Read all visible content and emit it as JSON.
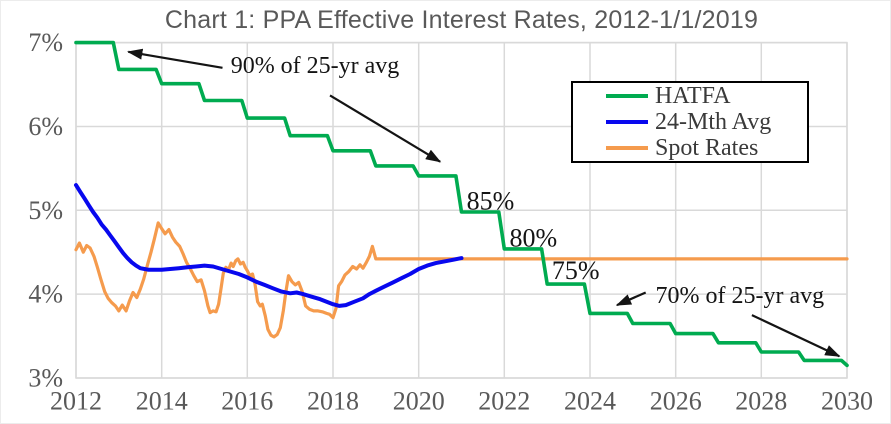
{
  "chart_data": {
    "type": "line",
    "title": "Chart 1: PPA Effective Interest Rates, 2012-1/1/2019",
    "title_color": "#595959",
    "grid_color": "#d9d9d9",
    "tick_color": "#595959",
    "annotation_color": "#141414",
    "x_axis": {
      "min": 2012,
      "max": 2030,
      "tick_labels": [
        "2012",
        "2014",
        "2016",
        "2018",
        "2020",
        "2022",
        "2024",
        "2026",
        "2028",
        "2030"
      ]
    },
    "y_axis": {
      "min": 3,
      "max": 7,
      "ticks": [
        {
          "label": "7%",
          "value": 7
        },
        {
          "label": "6%",
          "value": 6
        },
        {
          "label": "5%",
          "value": 5
        },
        {
          "label": "4%",
          "value": 4
        },
        {
          "label": "3%",
          "value": 3
        }
      ]
    },
    "legend": {
      "position": "top-right",
      "border_color": "#000000"
    },
    "series": [
      {
        "name": "HATFA",
        "color": "#00ab50",
        "style": "step",
        "stroke_width": 3.6,
        "step_years": [
          2012,
          2013,
          2014,
          2015,
          2016,
          2017,
          2018,
          2019,
          2020,
          2021,
          2022,
          2023,
          2024,
          2025,
          2026,
          2027,
          2028,
          2029,
          2030
        ],
        "step_values": [
          7.0,
          6.68,
          6.51,
          6.31,
          6.1,
          5.89,
          5.71,
          5.53,
          5.41,
          4.98,
          4.54,
          4.12,
          3.77,
          3.65,
          3.53,
          3.42,
          3.31,
          3.21,
          3.15
        ]
      },
      {
        "name": "24-Mth Avg",
        "color": "#0808ee",
        "style": "line",
        "stroke_width": 4,
        "points": [
          [
            2012.0,
            5.3
          ],
          [
            2012.1,
            5.22
          ],
          [
            2012.2,
            5.14
          ],
          [
            2012.3,
            5.06
          ],
          [
            2012.4,
            4.98
          ],
          [
            2012.5,
            4.91
          ],
          [
            2012.6,
            4.83
          ],
          [
            2012.7,
            4.77
          ],
          [
            2012.8,
            4.7
          ],
          [
            2012.9,
            4.63
          ],
          [
            2013.0,
            4.56
          ],
          [
            2013.1,
            4.49
          ],
          [
            2013.2,
            4.43
          ],
          [
            2013.3,
            4.38
          ],
          [
            2013.4,
            4.34
          ],
          [
            2013.5,
            4.31
          ],
          [
            2013.6,
            4.3
          ],
          [
            2013.7,
            4.29
          ],
          [
            2013.85,
            4.29
          ],
          [
            2014.0,
            4.29
          ],
          [
            2014.2,
            4.3
          ],
          [
            2014.4,
            4.31
          ],
          [
            2014.6,
            4.32
          ],
          [
            2014.8,
            4.33
          ],
          [
            2015.0,
            4.34
          ],
          [
            2015.2,
            4.33
          ],
          [
            2015.4,
            4.3
          ],
          [
            2015.6,
            4.27
          ],
          [
            2015.8,
            4.24
          ],
          [
            2016.0,
            4.2
          ],
          [
            2016.2,
            4.15
          ],
          [
            2016.4,
            4.11
          ],
          [
            2016.6,
            4.07
          ],
          [
            2016.8,
            4.03
          ],
          [
            2017.0,
            4.01
          ],
          [
            2017.15,
            4.02
          ],
          [
            2017.3,
            4.0
          ],
          [
            2017.5,
            3.97
          ],
          [
            2017.7,
            3.94
          ],
          [
            2017.85,
            3.91
          ],
          [
            2018.0,
            3.88
          ],
          [
            2018.15,
            3.86
          ],
          [
            2018.3,
            3.87
          ],
          [
            2018.5,
            3.91
          ],
          [
            2018.7,
            3.95
          ],
          [
            2018.85,
            4.0
          ],
          [
            2019.0,
            4.04
          ],
          [
            2019.2,
            4.09
          ],
          [
            2019.4,
            4.14
          ],
          [
            2019.6,
            4.19
          ],
          [
            2019.8,
            4.24
          ],
          [
            2020.0,
            4.3
          ],
          [
            2020.2,
            4.34
          ],
          [
            2020.4,
            4.37
          ],
          [
            2020.6,
            4.39
          ],
          [
            2020.8,
            4.41
          ],
          [
            2021.0,
            4.43
          ]
        ]
      },
      {
        "name": "Spot Rates",
        "color": "#f59b4d",
        "style": "line",
        "stroke_width": 3.2,
        "points": [
          [
            2012.0,
            4.53
          ],
          [
            2012.08,
            4.61
          ],
          [
            2012.17,
            4.5
          ],
          [
            2012.25,
            4.58
          ],
          [
            2012.33,
            4.55
          ],
          [
            2012.42,
            4.45
          ],
          [
            2012.5,
            4.32
          ],
          [
            2012.58,
            4.18
          ],
          [
            2012.67,
            4.03
          ],
          [
            2012.75,
            3.95
          ],
          [
            2012.83,
            3.9
          ],
          [
            2012.92,
            3.86
          ],
          [
            2013.0,
            3.8
          ],
          [
            2013.08,
            3.87
          ],
          [
            2013.17,
            3.8
          ],
          [
            2013.25,
            3.92
          ],
          [
            2013.33,
            4.02
          ],
          [
            2013.42,
            3.96
          ],
          [
            2013.5,
            4.06
          ],
          [
            2013.58,
            4.18
          ],
          [
            2013.67,
            4.35
          ],
          [
            2013.75,
            4.5
          ],
          [
            2013.83,
            4.66
          ],
          [
            2013.92,
            4.85
          ],
          [
            2014.0,
            4.78
          ],
          [
            2014.08,
            4.72
          ],
          [
            2014.17,
            4.77
          ],
          [
            2014.25,
            4.68
          ],
          [
            2014.33,
            4.62
          ],
          [
            2014.42,
            4.57
          ],
          [
            2014.5,
            4.48
          ],
          [
            2014.58,
            4.38
          ],
          [
            2014.67,
            4.3
          ],
          [
            2014.75,
            4.22
          ],
          [
            2014.83,
            4.15
          ],
          [
            2014.92,
            4.17
          ],
          [
            2015.0,
            4.04
          ],
          [
            2015.08,
            3.86
          ],
          [
            2015.13,
            3.78
          ],
          [
            2015.2,
            3.8
          ],
          [
            2015.27,
            3.79
          ],
          [
            2015.33,
            3.88
          ],
          [
            2015.38,
            4.05
          ],
          [
            2015.44,
            4.25
          ],
          [
            2015.5,
            4.32
          ],
          [
            2015.56,
            4.29
          ],
          [
            2015.62,
            4.37
          ],
          [
            2015.67,
            4.33
          ],
          [
            2015.73,
            4.4
          ],
          [
            2015.78,
            4.42
          ],
          [
            2015.84,
            4.36
          ],
          [
            2015.9,
            4.38
          ],
          [
            2015.95,
            4.32
          ],
          [
            2016.0,
            4.28
          ],
          [
            2016.06,
            4.22
          ],
          [
            2016.12,
            4.24
          ],
          [
            2016.18,
            4.12
          ],
          [
            2016.24,
            3.91
          ],
          [
            2016.3,
            3.86
          ],
          [
            2016.35,
            3.88
          ],
          [
            2016.42,
            3.74
          ],
          [
            2016.48,
            3.58
          ],
          [
            2016.55,
            3.51
          ],
          [
            2016.62,
            3.49
          ],
          [
            2016.7,
            3.52
          ],
          [
            2016.77,
            3.6
          ],
          [
            2016.84,
            3.8
          ],
          [
            2016.9,
            4.03
          ],
          [
            2016.96,
            4.22
          ],
          [
            2017.04,
            4.15
          ],
          [
            2017.12,
            4.11
          ],
          [
            2017.2,
            4.14
          ],
          [
            2017.28,
            4.03
          ],
          [
            2017.36,
            3.86
          ],
          [
            2017.45,
            3.82
          ],
          [
            2017.55,
            3.8
          ],
          [
            2017.65,
            3.8
          ],
          [
            2017.75,
            3.79
          ],
          [
            2017.85,
            3.77
          ],
          [
            2017.92,
            3.76
          ],
          [
            2018.0,
            3.72
          ],
          [
            2018.07,
            3.83
          ],
          [
            2018.13,
            4.1
          ],
          [
            2018.2,
            4.15
          ],
          [
            2018.28,
            4.23
          ],
          [
            2018.37,
            4.27
          ],
          [
            2018.46,
            4.33
          ],
          [
            2018.55,
            4.3
          ],
          [
            2018.63,
            4.35
          ],
          [
            2018.7,
            4.31
          ],
          [
            2018.78,
            4.38
          ],
          [
            2018.85,
            4.45
          ],
          [
            2018.92,
            4.57
          ],
          [
            2019.0,
            4.42
          ],
          [
            2030.0,
            4.42
          ]
        ]
      }
    ],
    "annotations": {
      "labels": [
        {
          "text": "90% of 25-yr avg",
          "x": 2017.58,
          "y": 6.72,
          "anchor": "middle",
          "size": 24
        },
        {
          "text": "85%",
          "x": 2021.12,
          "y": 5.11,
          "anchor": "start",
          "size": 26
        },
        {
          "text": "80%",
          "x": 2022.12,
          "y": 4.67,
          "anchor": "start",
          "size": 26
        },
        {
          "text": "75%",
          "x": 2023.11,
          "y": 4.28,
          "anchor": "start",
          "size": 26
        },
        {
          "text": "70% of 25-yr avg",
          "x": 2025.53,
          "y": 3.98,
          "anchor": "start",
          "size": 24
        }
      ],
      "arrows": [
        {
          "from": [
            2015.42,
            6.7
          ],
          "to": [
            2013.22,
            6.89
          ]
        },
        {
          "from": [
            2017.93,
            6.37
          ],
          "to": [
            2020.5,
            5.58
          ]
        },
        {
          "from": [
            2025.3,
            4.02
          ],
          "to": [
            2024.63,
            3.87
          ]
        },
        {
          "from": [
            2027.78,
            3.75
          ],
          "to": [
            2029.82,
            3.26
          ]
        }
      ]
    }
  }
}
